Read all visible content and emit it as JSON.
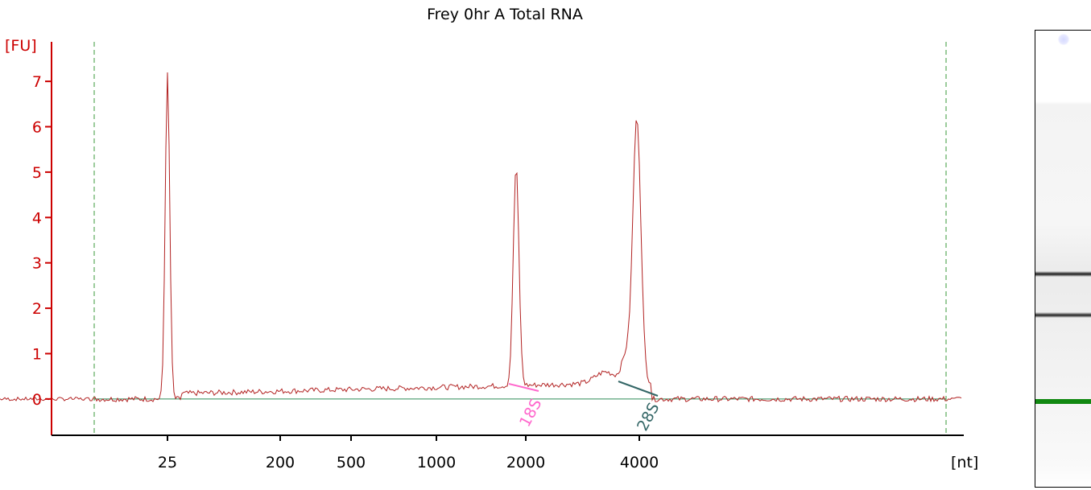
{
  "chart_data": {
    "type": "line",
    "title": "Frey 0hr A Total RNA",
    "ylabel": "[FU]",
    "xlabel": "[nt]",
    "ylim": [
      -0.8,
      7.8
    ],
    "yticks": [
      0,
      1,
      2,
      3,
      4,
      5,
      6,
      7
    ],
    "xticks": [
      {
        "label": "25",
        "value": 25
      },
      {
        "label": "200",
        "value": 200
      },
      {
        "label": "500",
        "value": 500
      },
      {
        "label": "1000",
        "value": 1000
      },
      {
        "label": "2000",
        "value": 2000
      },
      {
        "label": "4000",
        "value": 4000
      }
    ],
    "x_scale": "ladder (nonlinear)",
    "series": [
      {
        "color": "#b22222",
        "peaks": [
          {
            "x": 25,
            "y": 7.15,
            "half_width_nt": 2
          },
          {
            "x": 1900,
            "y": 4.82,
            "half_width_nt": 60,
            "note": "18S"
          },
          {
            "x": 3900,
            "y": 5.75,
            "half_width_nt": 80,
            "note": "28S"
          }
        ],
        "baseline_level": 0.2
      }
    ],
    "annotations": [
      {
        "text": "18S",
        "color": "#ff66cc",
        "x": 2000
      },
      {
        "text": "28S",
        "color": "#336666",
        "x": 4000
      }
    ],
    "baseline_color": "#2e8b57",
    "marker_lines": [
      {
        "style": "dashed",
        "color": "#3a9a3a",
        "position": "left"
      },
      {
        "style": "dashed",
        "color": "#3a9a3a",
        "position": "right"
      }
    ],
    "axis_color": "#cc0000"
  },
  "gel": {
    "bands": [
      {
        "name": "28S",
        "position": 0.53,
        "color": "#333333"
      },
      {
        "name": "18S",
        "position": 0.62,
        "color": "#444444"
      },
      {
        "name": "marker",
        "position": 0.81,
        "color": "#118811"
      }
    ]
  }
}
